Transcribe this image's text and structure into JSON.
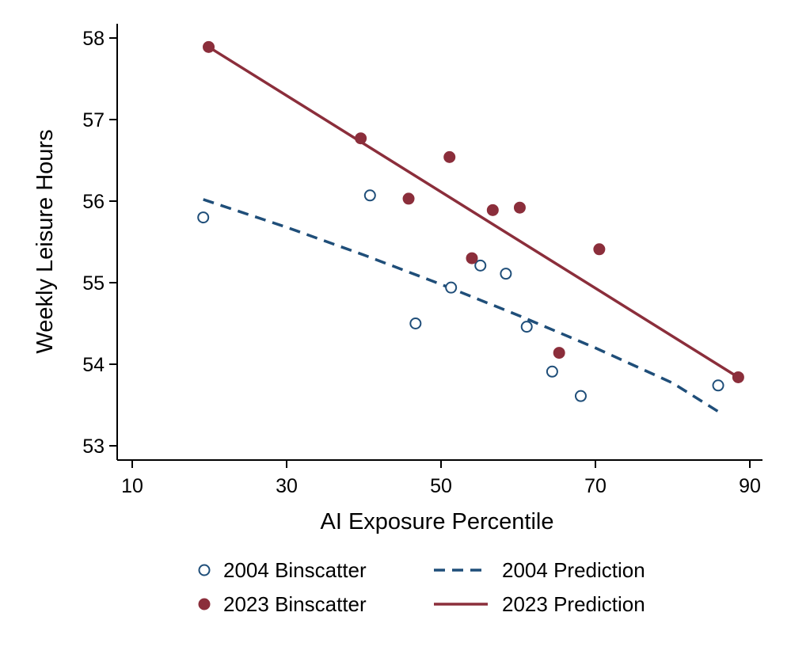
{
  "chart_data": {
    "type": "scatter",
    "title": "",
    "xlabel": "AI Exposure Percentile",
    "ylabel": "Weekly Leisure Hours",
    "xlim": [
      10,
      92
    ],
    "ylim": [
      52.85,
      58.2
    ],
    "xticks": [
      10,
      30,
      50,
      70,
      90
    ],
    "yticks": [
      53,
      54,
      55,
      56,
      57,
      58
    ],
    "grid": false,
    "legend_position": "bottom",
    "colors": {
      "series_2004": "#1f4e79",
      "series_2023": "#8b2e3b"
    },
    "series": [
      {
        "name": "2004 Binscatter",
        "kind": "scatter-hollow",
        "color": "#1f4e79",
        "x": [
          19.2,
          40.8,
          46.7,
          51.3,
          55.1,
          58.4,
          61.1,
          64.4,
          68.1,
          85.9
        ],
        "y": [
          55.8,
          56.07,
          54.5,
          54.94,
          55.21,
          55.11,
          54.46,
          53.91,
          53.61,
          53.74
        ]
      },
      {
        "name": "2023 Binscatter",
        "kind": "scatter-filled",
        "color": "#8b2e3b",
        "x": [
          19.9,
          39.6,
          45.8,
          51.1,
          54,
          56.7,
          60.2,
          65.3,
          70.5,
          88.5
        ],
        "y": [
          57.89,
          56.77,
          56.03,
          56.54,
          55.3,
          55.89,
          55.92,
          54.14,
          55.41,
          53.84
        ]
      },
      {
        "name": "2004 Prediction",
        "kind": "line-dashed",
        "color": "#1f4e79",
        "x": [
          19.2,
          30,
          40,
          50,
          60,
          70,
          80,
          85.9
        ],
        "y": [
          56.02,
          55.68,
          55.34,
          54.98,
          54.6,
          54.2,
          53.77,
          53.42
        ]
      },
      {
        "name": "2023 Prediction",
        "kind": "line-solid",
        "color": "#8b2e3b",
        "x": [
          19.9,
          88.5
        ],
        "y": [
          57.89,
          53.84
        ]
      }
    ],
    "legend": [
      {
        "label": "2004 Binscatter",
        "series": 0
      },
      {
        "label": "2004 Prediction",
        "series": 2
      },
      {
        "label": "2023 Binscatter",
        "series": 1
      },
      {
        "label": "2023 Prediction",
        "series": 3
      }
    ]
  }
}
